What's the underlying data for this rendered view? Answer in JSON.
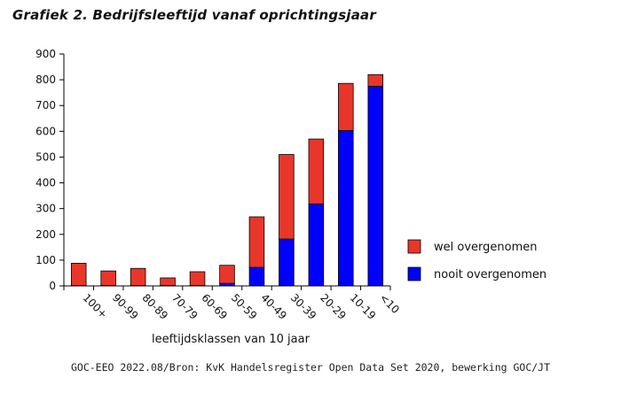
{
  "chart_data": {
    "type": "bar",
    "stacked": true,
    "title": "Grafiek 2. Bedrijfsleeftijd vanaf oprichtingsjaar",
    "xlabel": "leeftijdsklassen van 10 jaar",
    "ylabel": "",
    "ylim": [
      0,
      900
    ],
    "yticks": [
      0,
      100,
      200,
      300,
      400,
      500,
      600,
      700,
      800,
      900
    ],
    "categories": [
      "100+",
      "90-99",
      "80-89",
      "70-79",
      "60-69",
      "50-59",
      "40-49",
      "30-39",
      "20-29",
      "10-19",
      "<10"
    ],
    "series": [
      {
        "name": "nooit overgenomen",
        "color": "#0000ff",
        "values": [
          2,
          2,
          2,
          2,
          2,
          10,
          72,
          182,
          318,
          603,
          775
        ]
      },
      {
        "name": "wel overgenomen",
        "color": "#e8372a",
        "values": [
          86,
          56,
          66,
          29,
          53,
          70,
          196,
          328,
          252,
          183,
          45
        ]
      }
    ],
    "legend_order": [
      "wel overgenomen",
      "nooit overgenomen"
    ],
    "legend_position": "right",
    "grid": false
  },
  "source": "GOC-EEO 2022.08/Bron: KvK Handelsregister Open Data Set 2020, bewerking GOC/JT"
}
